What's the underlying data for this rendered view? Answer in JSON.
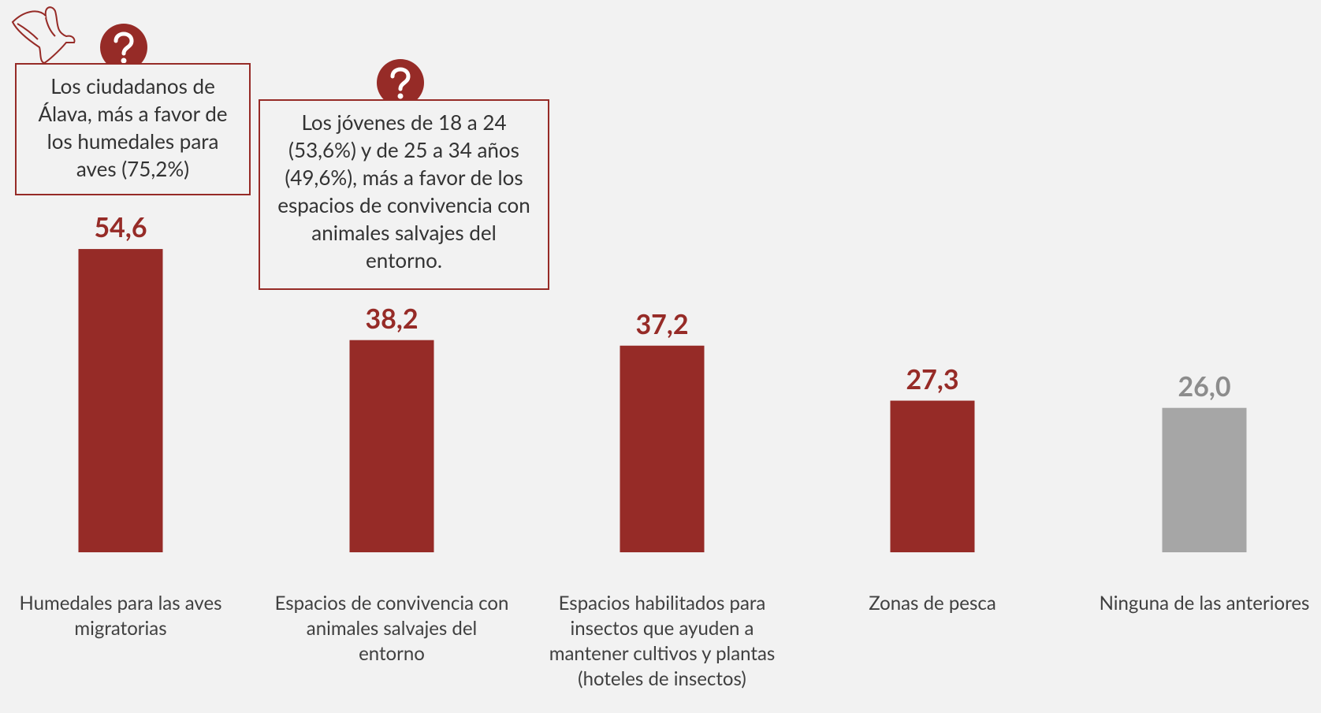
{
  "chart_data": {
    "type": "bar",
    "categories": [
      "Humedales para las aves migratorias",
      "Espacios de convivencia con animales salvajes del entorno",
      "Espacios habilitados para insectos que ayuden a mantener cultivos y plantas (hoteles de insectos)",
      "Zonas de pesca",
      "Ninguna de las anteriores"
    ],
    "values": [
      54.6,
      38.2,
      37.2,
      27.3,
      26.0
    ],
    "value_labels": [
      "54,6",
      "38,2",
      "37,2",
      "27,3",
      "26,0"
    ],
    "colors": [
      "#962b27",
      "#962b27",
      "#962b27",
      "#962b27",
      "#a6a6a6"
    ],
    "label_colors": [
      "#962b27",
      "#962b27",
      "#962b27",
      "#962b27",
      "#8c8c8c"
    ],
    "annotations": [
      {
        "text": "Los ciudadanos de Álava, más a favor de los humedales para aves (75,2%)"
      },
      {
        "text": "Los jóvenes de 18 a 24 (53,6%) y de 25 a 34 años (49,6%), más a favor de los espacios de convivencia con animales salvajes del entorno."
      }
    ]
  }
}
